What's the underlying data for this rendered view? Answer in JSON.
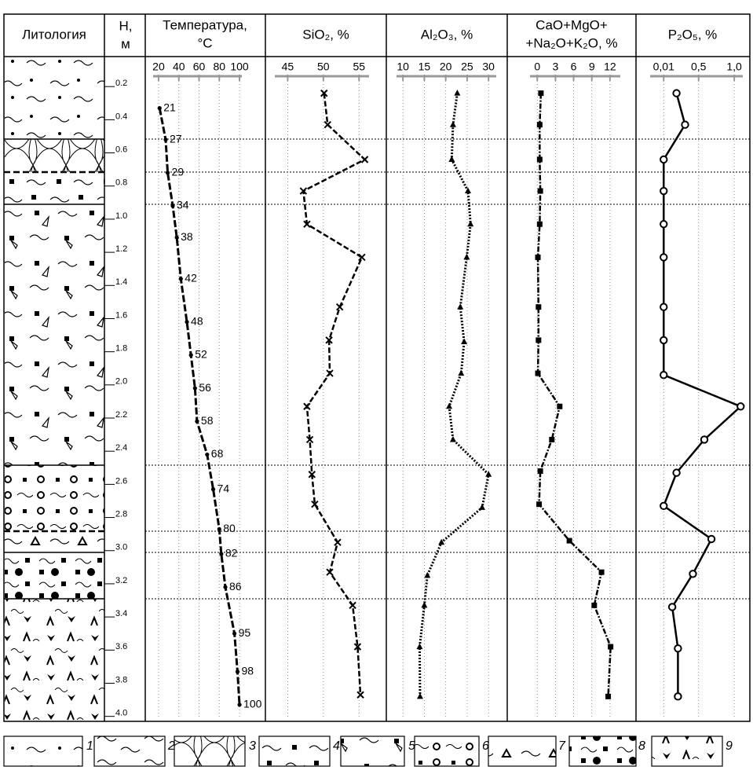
{
  "lithology_title": "Литология",
  "depth_axis": {
    "title": [
      "Н,",
      "м"
    ],
    "ylim": [
      0,
      4.03
    ],
    "yticks": [
      0.2,
      0.4,
      0.6,
      0.8,
      {
        "value": 1,
        "label": "1.0"
      },
      1.2,
      1.4,
      1.6,
      1.8,
      {
        "value": 2,
        "label": "2.0"
      },
      2.2,
      2.4,
      2.6,
      2.8,
      {
        "value": 3,
        "label": "3.0"
      },
      3.2,
      3.4,
      3.6,
      3.8,
      {
        "value": 4,
        "label": "4.0"
      }
    ]
  },
  "chart_data": [
    {
      "type": "line",
      "title": [
        "Температура,",
        "°С"
      ],
      "xlim": [
        14.6,
        102.3
      ],
      "xticks": [
        20,
        40,
        60,
        80,
        100
      ],
      "marker": "dot",
      "dash": "9,3",
      "data_labels": true,
      "y": [
        0.33,
        0.52,
        0.72,
        0.92,
        1.11,
        1.36,
        1.62,
        1.82,
        2.02,
        2.22,
        2.42,
        2.63,
        2.87,
        3.02,
        3.22,
        3.5,
        3.73,
        3.93
      ],
      "values": [
        21,
        27,
        29,
        34,
        38,
        42,
        48,
        52,
        56,
        58,
        68,
        74,
        80,
        82,
        86,
        95,
        98,
        100
      ]
    },
    {
      "type": "line",
      "title": [
        "SiO₂, %"
      ],
      "xlim": [
        43.2,
        56.4
      ],
      "xticks": [
        45,
        50,
        55
      ],
      "marker": "x",
      "dash": "7,3",
      "y": [
        0.24,
        0.43,
        0.64,
        0.83,
        1.03,
        1.23,
        1.53,
        1.73,
        1.93,
        2.13,
        2.33,
        2.54,
        2.72,
        2.95,
        3.13,
        3.33,
        3.58,
        3.87
      ],
      "values": [
        50.1,
        50.6,
        55.8,
        47.2,
        47.7,
        55.4,
        52.3,
        50.8,
        50.9,
        47.7,
        48.1,
        48.4,
        48.8,
        52,
        50.9,
        54.1,
        54.8,
        55.2
      ]
    },
    {
      "type": "line",
      "title": [
        "Al₂O₃, %"
      ],
      "xlim": [
        8.5,
        31.8
      ],
      "xticks": [
        10,
        15,
        20,
        25,
        30
      ],
      "marker": "triangle",
      "dash": "2,2",
      "y": [
        0.24,
        0.43,
        0.64,
        0.83,
        1.03,
        1.23,
        1.53,
        1.74,
        1.93,
        2.13,
        2.33,
        2.54,
        2.74,
        2.95,
        3.15,
        3.33,
        3.58,
        3.88
      ],
      "values": [
        22.7,
        21.7,
        21.4,
        25.2,
        25.8,
        24.9,
        23.4,
        24.3,
        23.6,
        20.8,
        21.7,
        30,
        28.5,
        19,
        15.7,
        15,
        13.9,
        14
      ]
    },
    {
      "type": "line",
      "title": [
        "CaO+MgO+",
        "+Na₂O+K₂O, %"
      ],
      "xlim": [
        -1.2,
        13.7
      ],
      "xticks": [
        0,
        3,
        6,
        9,
        12
      ],
      "marker": "square",
      "dash": "7,2,2,2",
      "y": [
        0.24,
        0.43,
        0.64,
        0.83,
        1.03,
        1.23,
        1.53,
        1.73,
        1.93,
        2.13,
        2.33,
        2.52,
        2.72,
        2.94,
        3.13,
        3.33,
        3.58,
        3.88
      ],
      "values": [
        0.6,
        0.4,
        0.4,
        0.5,
        0.4,
        0.1,
        0.2,
        0.2,
        0.1,
        3.7,
        2.4,
        0.5,
        0.3,
        5.3,
        10.6,
        9.4,
        12.1,
        11.7
      ]
    },
    {
      "type": "line",
      "title": [
        "P₂O₅, %"
      ],
      "xlim": [
        -0.18,
        1.12
      ],
      "xticks": [
        {
          "value": 0.01,
          "label": "0,01"
        },
        {
          "value": 0.5,
          "label": "0,5"
        },
        {
          "value": 1,
          "label": "1,0"
        }
      ],
      "marker": "circle",
      "dash": "none",
      "y": [
        0.24,
        0.43,
        0.64,
        0.83,
        1.03,
        1.23,
        1.53,
        1.73,
        1.94,
        2.13,
        2.33,
        2.53,
        2.73,
        2.93,
        3.14,
        3.34,
        3.59,
        3.88
      ],
      "values": [
        0.19,
        0.31,
        0.01,
        0.01,
        0.01,
        0.01,
        0.01,
        0.01,
        0.01,
        1.09,
        0.58,
        0.19,
        0.01,
        0.68,
        0.42,
        0.13,
        0.21,
        0.21
      ]
    }
  ],
  "legend": [
    "1",
    "2",
    "3",
    "4",
    "5",
    "6",
    "7",
    "8",
    "9"
  ]
}
